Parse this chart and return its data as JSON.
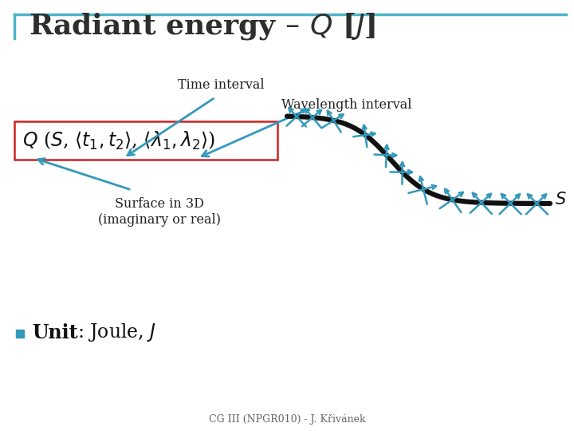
{
  "title": "Radiant energy – $Q$ [$J$]",
  "title_fontsize": 26,
  "title_color": "#2e2e2e",
  "bg_color": "#ffffff",
  "border_color": "#4db3c8",
  "box_color": "#cc2222",
  "arrow_color": "#3399bb",
  "curve_color": "#111111",
  "tick_color": "#3399bb",
  "label_time": "Time interval",
  "label_wave": "Wavelength interval",
  "label_surface": "Surface in 3D\n(imaginary or real)",
  "formula": "$Q$ ($S$, $<$$t_1$, $t_2$$>$, $<$$\\lambda_1$, $\\lambda_2$$>$)",
  "unit_bold": "Unit",
  "unit_normal": ": Joule, $J$",
  "bullet_color": "#3399bb",
  "footer": "CG III (NPGR010) - J. Křivánek"
}
